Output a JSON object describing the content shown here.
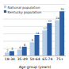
{
  "chart_data": {
    "type": "bar",
    "xlabel": "Age group (years)",
    "categories": [
      "18-34",
      "35-49",
      "50-64",
      "65-74",
      "75+"
    ],
    "series": [
      {
        "name": "National population",
        "color": "#b8cfe8",
        "values": [
          2,
          4,
          9,
          17,
          24
        ]
      },
      {
        "name": "Kentucky population",
        "color": "#2e5fa3",
        "values": [
          3,
          6,
          14,
          22,
          30
        ]
      }
    ],
    "ylim": [
      0,
      35
    ],
    "yticks": [
      0,
      5,
      10,
      15,
      20,
      25,
      30,
      35
    ],
    "grid": true,
    "legend": "upper left",
    "data_labels": true,
    "tick_labels": "x"
  }
}
